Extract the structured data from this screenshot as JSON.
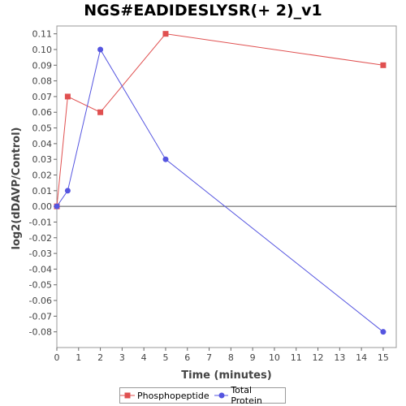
{
  "chart_data": {
    "type": "line",
    "title": "NGS#EADIDESLYSR(+ 2)_v1",
    "xlabel": "Time (minutes)",
    "ylabel": "log2(dDAVP/Control)",
    "xlim": [
      0,
      15.6
    ],
    "ylim": [
      -0.09,
      0.115
    ],
    "x_ticks": [
      0,
      1,
      2,
      3,
      4,
      5,
      6,
      7,
      8,
      9,
      10,
      11,
      12,
      13,
      14,
      15
    ],
    "y_ticks": [
      0.11,
      0.1,
      0.09,
      0.08,
      0.07,
      0.06,
      0.05,
      0.04,
      0.03,
      0.02,
      0.01,
      0.0,
      -0.01,
      -0.02,
      -0.03,
      -0.04,
      -0.05,
      -0.06,
      -0.07,
      -0.08
    ],
    "grid": false,
    "legend_position": "bottom-center",
    "series": [
      {
        "name": "Phosphopeptide",
        "color": "#e05050",
        "marker": "square",
        "x": [
          0,
          0.5,
          2,
          5,
          15
        ],
        "y": [
          0.0,
          0.07,
          0.06,
          0.11,
          0.09
        ]
      },
      {
        "name": "Total Protein",
        "color": "#5555e0",
        "marker": "circle",
        "x": [
          0,
          0.5,
          2,
          5,
          15
        ],
        "y": [
          0.0,
          0.01,
          0.1,
          0.03,
          -0.08
        ]
      }
    ]
  }
}
